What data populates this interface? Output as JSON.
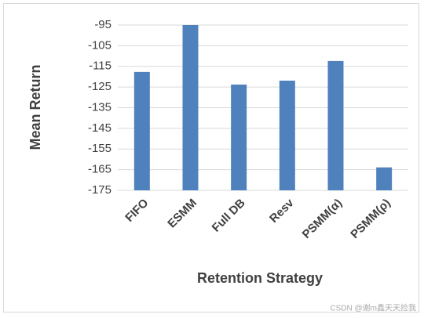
{
  "chart_data": {
    "type": "bar",
    "x_label": "Retention Strategy",
    "y_label": "Mean Return",
    "categories": [
      "FIFO",
      "ESMM",
      "Full DB",
      "Resv",
      "PSMM(α)",
      "PSMM(ρ)"
    ],
    "values": [
      -117.7,
      -95,
      -123.8,
      -121.9,
      -112.4,
      -163.9
    ],
    "color": "#4f81bd",
    "ylim": [
      -175,
      -95
    ],
    "yticks": [
      -175,
      -165,
      -155,
      -145,
      -135,
      -125,
      -115,
      -105,
      -95
    ],
    "grid": true,
    "watermark": "CSDN @谢m鑫天天捡我"
  }
}
